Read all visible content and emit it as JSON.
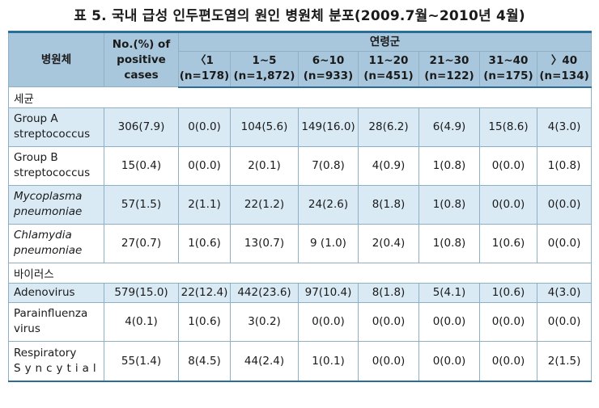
{
  "title": "표 5. 국내 급성 인두편도염의 원인 병원체 분포(2009.7월~2010년 4월)",
  "headers": {
    "pathogen": "병원체",
    "positive": [
      "No.(%) of",
      "positive",
      "cases"
    ],
    "age_group": "연령군",
    "ages": [
      {
        "label": "〈1",
        "n": "(n=178)"
      },
      {
        "label": "1~5",
        "n": "(n=1,872)"
      },
      {
        "label": "6~10",
        "n": "(n=933)"
      },
      {
        "label": "11~20",
        "n": "(n=451)"
      },
      {
        "label": "21~30",
        "n": "(n=122)"
      },
      {
        "label": "31~40",
        "n": "(n=175)"
      },
      {
        "label": "〉40",
        "n": "(n=134)"
      }
    ]
  },
  "sections": {
    "bacteria": "세균",
    "virus": "바이러스"
  },
  "rows": [
    {
      "name1": "Group A",
      "name2": "streptococcus",
      "vals": [
        "306(7.9)",
        "0(0.0)",
        "104(5.6)",
        "149(16.0)",
        "28(6.2)",
        "6(4.9)",
        "15(8.6)",
        "4(3.0)"
      ]
    },
    {
      "name1": "Group B",
      "name2": "streptococcus",
      "vals": [
        "15(0.4)",
        "0(0.0)",
        "2(0.1)",
        "7(0.8)",
        "4(0.9)",
        "1(0.8)",
        "0(0.0)",
        "1(0.8)"
      ]
    },
    {
      "name1": "Mycoplasma",
      "name2": "pneumoniae",
      "vals": [
        "57(1.5)",
        "2(1.1)",
        "22(1.2)",
        "24(2.6)",
        "8(1.8)",
        "1(0.8)",
        "0(0.0)",
        "0(0.0)"
      ]
    },
    {
      "name1": "Chlamydia",
      "name2": "pneumoniae",
      "vals": [
        "27(0.7)",
        "1(0.6)",
        "13(0.7)",
        "9 (1.0)",
        "2(0.4)",
        "1(0.8)",
        "1(0.6)",
        "0(0.0)"
      ]
    },
    {
      "name1": "Adenovirus",
      "name2": "",
      "vals": [
        "579(15.0)",
        "22(12.4)",
        "442(23.6)",
        "97(10.4)",
        "8(1.8)",
        "5(4.1)",
        "1(0.6)",
        "4(3.0)"
      ]
    },
    {
      "name1": "Parainfluenza",
      "name2": "virus",
      "vals": [
        "4(0.1)",
        "1(0.6)",
        "3(0.2)",
        "0(0.0)",
        "0(0.0)",
        "0(0.0)",
        "0(0.0)",
        "0(0.0)"
      ]
    },
    {
      "name1": "Respiratory",
      "name2": "Syncytial",
      "vals": [
        "55(1.4)",
        "8(4.5)",
        "44(2.4)",
        "1(0.1)",
        "0(0.0)",
        "0(0.0)",
        "0(0.0)",
        "2(1.5)"
      ]
    }
  ],
  "colors": {
    "header_bg": "#a9c7dc",
    "row_alt_bg": "#daeaf5",
    "rule": "#2c6d97"
  }
}
